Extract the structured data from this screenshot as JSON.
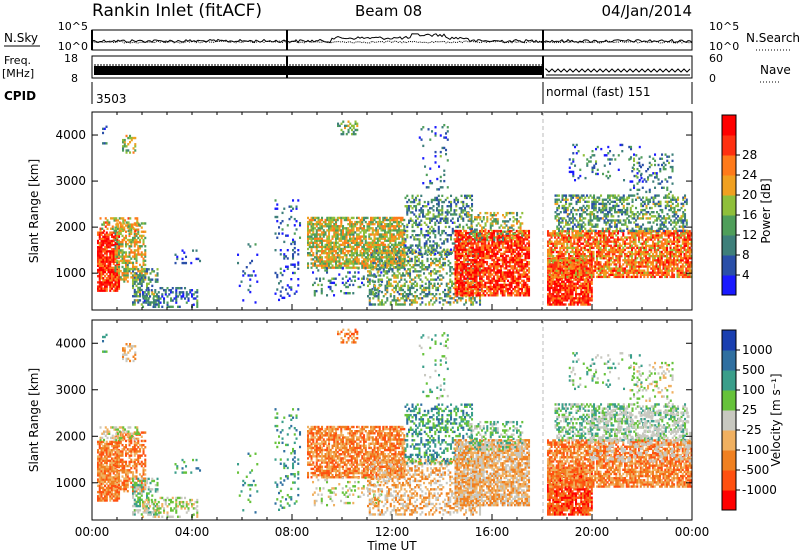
{
  "header": {
    "station": "Rankin Inlet (fitACF)",
    "beam": "Beam 08",
    "date": "04/Jan/2014"
  },
  "strips": {
    "nsky_label": "N.Sky",
    "nsky_ticks": [
      "10^5",
      "10^0"
    ],
    "nsearch_label": "N.Search",
    "nsearch_ticks": [
      "10^5",
      "10^0"
    ],
    "freq_label": "Freq.",
    "freq_unit": "[MHz]",
    "freq_ticks": [
      "18",
      "8"
    ],
    "nave_label": "Nave",
    "nave_ticks": [
      "60",
      "0"
    ],
    "cpid_label": "CPID",
    "cpid_values": [
      "3503",
      "normal (fast) 151"
    ]
  },
  "chart_data": [
    {
      "type": "heatmap",
      "name": "power",
      "ylabel": "Slant Range [km]",
      "ylim": [
        200,
        4500
      ],
      "yticks": [
        "1000",
        "2000",
        "3000",
        "4000"
      ],
      "colorbar": {
        "label": "Power [dB]",
        "ticks": [
          "4",
          "8",
          "12",
          "16",
          "20",
          "24",
          "28"
        ],
        "colors": [
          "#1a1aff",
          "#2a4fa8",
          "#3e7f7a",
          "#4f9e5a",
          "#8fbf3a",
          "#f0a020",
          "#ff7a1a",
          "#ff3010",
          "#ff0000"
        ]
      }
    },
    {
      "type": "heatmap",
      "name": "velocity",
      "ylabel": "Slant Range [km]",
      "ylim": [
        200,
        4500
      ],
      "yticks": [
        "1000",
        "2000",
        "3000",
        "4000"
      ],
      "colorbar": {
        "label": "Velocity [m s⁻¹]",
        "ticks": [
          "1000",
          "500",
          "100",
          "25",
          "-25",
          "-100",
          "-500",
          "-1000"
        ],
        "colors": [
          "#1a3fb0",
          "#2f6fa0",
          "#3a9e8a",
          "#66c23a",
          "#c8c8c0",
          "#f0b060",
          "#f08020",
          "#ff5010",
          "#ff0000"
        ]
      }
    }
  ],
  "xaxis": {
    "label": "Time UT",
    "ticks": [
      "00:00",
      "04:00",
      "08:00",
      "12:00",
      "16:00",
      "20:00",
      "00:00"
    ]
  }
}
